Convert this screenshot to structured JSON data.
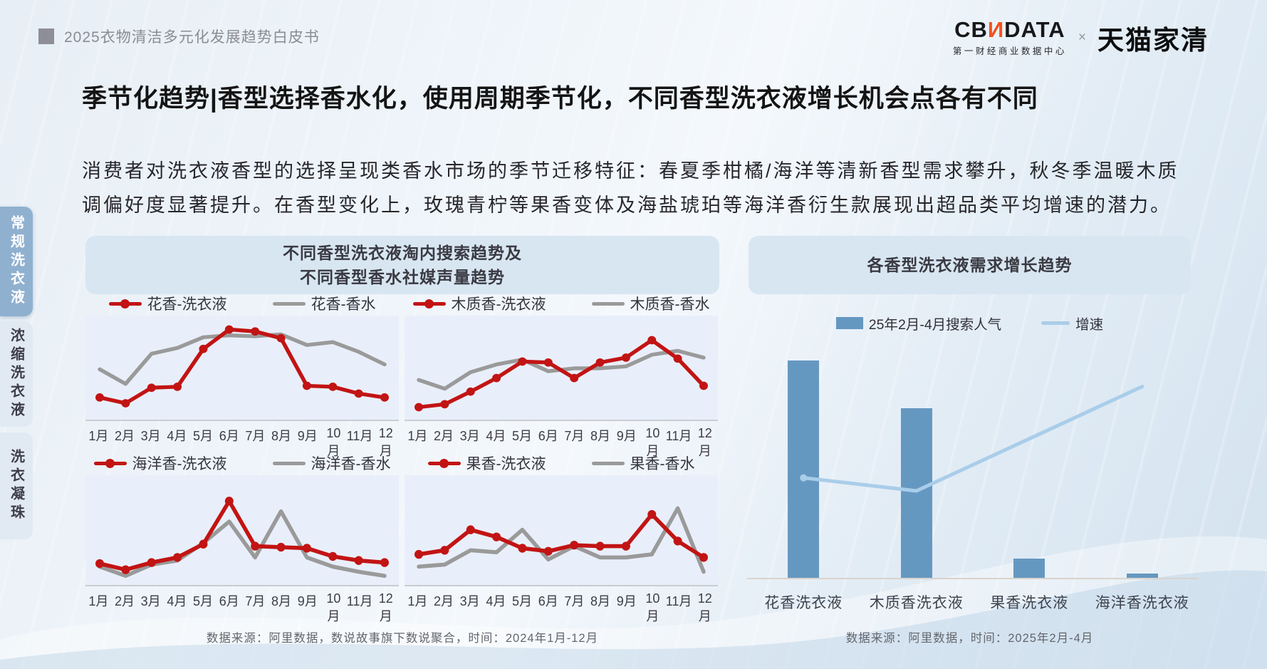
{
  "header": {
    "doc_title": "2025衣物清洁多元化发展趋势白皮书",
    "logo": {
      "brand_prefix": "CB",
      "brand_n": "И",
      "brand_suffix": "DATA",
      "brand_subtitle": "第一财经商业数据中心",
      "separator": "×",
      "partner": "天猫家清"
    }
  },
  "page_title": "季节化趋势|香型选择香水化，使用周期季节化，不同香型洗衣液增长机会点各有不同",
  "intro": "消费者对洗衣液香型的选择呈现类香水市场的季节迁移特征：春夏季柑橘/海洋等清新香型需求攀升，秋冬季温暖木质调偏好度显著提升。在香型变化上，玫瑰青柠等果香变体及海盐琥珀等海洋香衍生款展现出超品类平均增速的潜力。",
  "sidebar": {
    "tabs": [
      {
        "label": "常规洗衣液",
        "active": true
      },
      {
        "label": "浓缩洗衣液",
        "active": false
      },
      {
        "label": "洗衣凝珠",
        "active": false
      }
    ]
  },
  "left_panel": {
    "title_line1": "不同香型洗衣液淘内搜索趋势及",
    "title_line2": "不同香型香水社媒声量趋势",
    "source": "数据来源：阿里数据，数说故事旗下数说聚合，时间：2024年1月-12月"
  },
  "right_panel": {
    "title": "各香型洗衣液需求增长趋势",
    "source": "数据来源：阿里数据，时间：2025年2月-4月"
  },
  "colors": {
    "detergent_line": "#c21414",
    "perfume_line": "#9a9a9a",
    "bar_fill": "#6598c1",
    "growth_line": "#a9cde9",
    "active_tab": "#90b0d0",
    "panel_header_bg": "#d8e6f2",
    "plot_bg": "#e9effa"
  },
  "chart_data": [
    {
      "type": "line",
      "title": "花香：洗衣液淘内搜索 vs 香水社媒声量",
      "x": [
        "1月",
        "2月",
        "3月",
        "4月",
        "5月",
        "6月",
        "7月",
        "8月",
        "9月",
        "10月",
        "11月",
        "12月"
      ],
      "ylim": [
        0,
        100
      ],
      "legend_position": "top",
      "grid": false,
      "series": [
        {
          "name": "花香-洗衣液",
          "values": [
            20,
            14,
            30,
            31,
            70,
            90,
            88,
            81,
            32,
            31,
            24,
            20
          ]
        },
        {
          "name": "花香-香水",
          "values": [
            49,
            34,
            65,
            71,
            82,
            84,
            83,
            85,
            74,
            77,
            67,
            54
          ]
        }
      ]
    },
    {
      "type": "line",
      "title": "木质香：洗衣液淘内搜索 vs 香水社媒声量",
      "x": [
        "1月",
        "2月",
        "3月",
        "4月",
        "5月",
        "6月",
        "7月",
        "8月",
        "9月",
        "10月",
        "11月",
        "12月"
      ],
      "ylim": [
        0,
        100
      ],
      "legend_position": "top",
      "grid": false,
      "series": [
        {
          "name": "木质香-洗衣液",
          "values": [
            10,
            13,
            26,
            40,
            57,
            56,
            40,
            56,
            61,
            79,
            60,
            32
          ]
        },
        {
          "name": "木质香-香水",
          "values": [
            38,
            29,
            46,
            54,
            59,
            47,
            50,
            50,
            52,
            64,
            68,
            61
          ]
        }
      ]
    },
    {
      "type": "line",
      "title": "海洋香：洗衣液淘内搜索 vs 香水社媒声量",
      "x": [
        "1月",
        "2月",
        "3月",
        "4月",
        "5月",
        "6月",
        "7月",
        "8月",
        "9月",
        "10月",
        "11月",
        "12月"
      ],
      "ylim": [
        0,
        100
      ],
      "legend_position": "top",
      "grid": false,
      "series": [
        {
          "name": "海洋香-洗衣液",
          "values": [
            18,
            12,
            19,
            24,
            37,
            79,
            35,
            34,
            33,
            25,
            21,
            19
          ]
        },
        {
          "name": "海洋香-香水",
          "values": [
            15,
            6,
            17,
            21,
            38,
            59,
            24,
            69,
            24,
            15,
            10,
            6
          ]
        }
      ]
    },
    {
      "type": "line",
      "title": "果香：洗衣液淘内搜索 vs 香水社媒声量",
      "x": [
        "1月",
        "2月",
        "3月",
        "4月",
        "5月",
        "6月",
        "7月",
        "8月",
        "9月",
        "10月",
        "11月",
        "12月"
      ],
      "ylim": [
        0,
        100
      ],
      "legend_position": "top",
      "grid": false,
      "series": [
        {
          "name": "果香-洗衣液",
          "values": [
            27,
            31,
            51,
            44,
            33,
            30,
            36,
            35,
            35,
            66,
            40,
            24
          ]
        },
        {
          "name": "果香-香水",
          "values": [
            15,
            17,
            31,
            29,
            51,
            22,
            35,
            24,
            24,
            27,
            72,
            10
          ]
        }
      ]
    },
    {
      "type": "bar",
      "title": "各香型洗衣液需求增长趋势",
      "categories": [
        "花香洗衣液",
        "木质香洗衣液",
        "果香洗衣液",
        "海洋香洗衣液"
      ],
      "ylim": [
        0,
        100
      ],
      "legend_position": "top",
      "grid": false,
      "series": [
        {
          "name": "25年2月-4月搜索人气",
          "type": "bar",
          "values": [
            100,
            78,
            9,
            2
          ]
        },
        {
          "name": "增速",
          "type": "line",
          "values": [
            46,
            40,
            64,
            88
          ]
        }
      ]
    }
  ]
}
